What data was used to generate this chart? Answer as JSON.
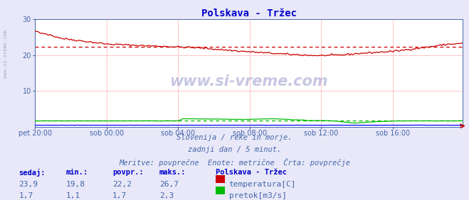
{
  "title": "Polskava - Tržec",
  "bg_color": "#e8e8f8",
  "plot_bg_color": "#ffffff",
  "title_color": "#0000cc",
  "axis_color": "#4466aa",
  "text_color": "#4466aa",
  "temp_color": "#cc0000",
  "flow_color": "#00bb00",
  "height_color": "#0000ff",
  "avg_temp": 22.2,
  "avg_flow": 1.7,
  "min_temp": 19.8,
  "max_temp": 26.7,
  "min_flow": 1.1,
  "max_flow": 2.3,
  "cur_temp": 23.9,
  "cur_flow": 1.7,
  "ylim": [
    0,
    30
  ],
  "yticks": [
    10,
    20,
    30
  ],
  "x_labels": [
    "pet 20:00",
    "sob 00:00",
    "sob 04:00",
    "sob 08:00",
    "sob 12:00",
    "sob 16:00"
  ],
  "n_points": 288,
  "footer_line1": "Slovenija / reke in morje.",
  "footer_line2": "zadnji dan / 5 minut.",
  "footer_line3": "Meritve: povprečne  Enote: metrične  Črta: povprečje",
  "label_sedaj": "sedaj:",
  "label_min": "min.:",
  "label_povpr": "povpr.:",
  "label_maks": "maks.:",
  "label_station": "Polskava - Tržec",
  "label_temp": "temperatura[C]",
  "label_flow": "pretok[m3/s]",
  "watermark": "www.si-vreme.com",
  "left_text": "www.si-vreme.com"
}
